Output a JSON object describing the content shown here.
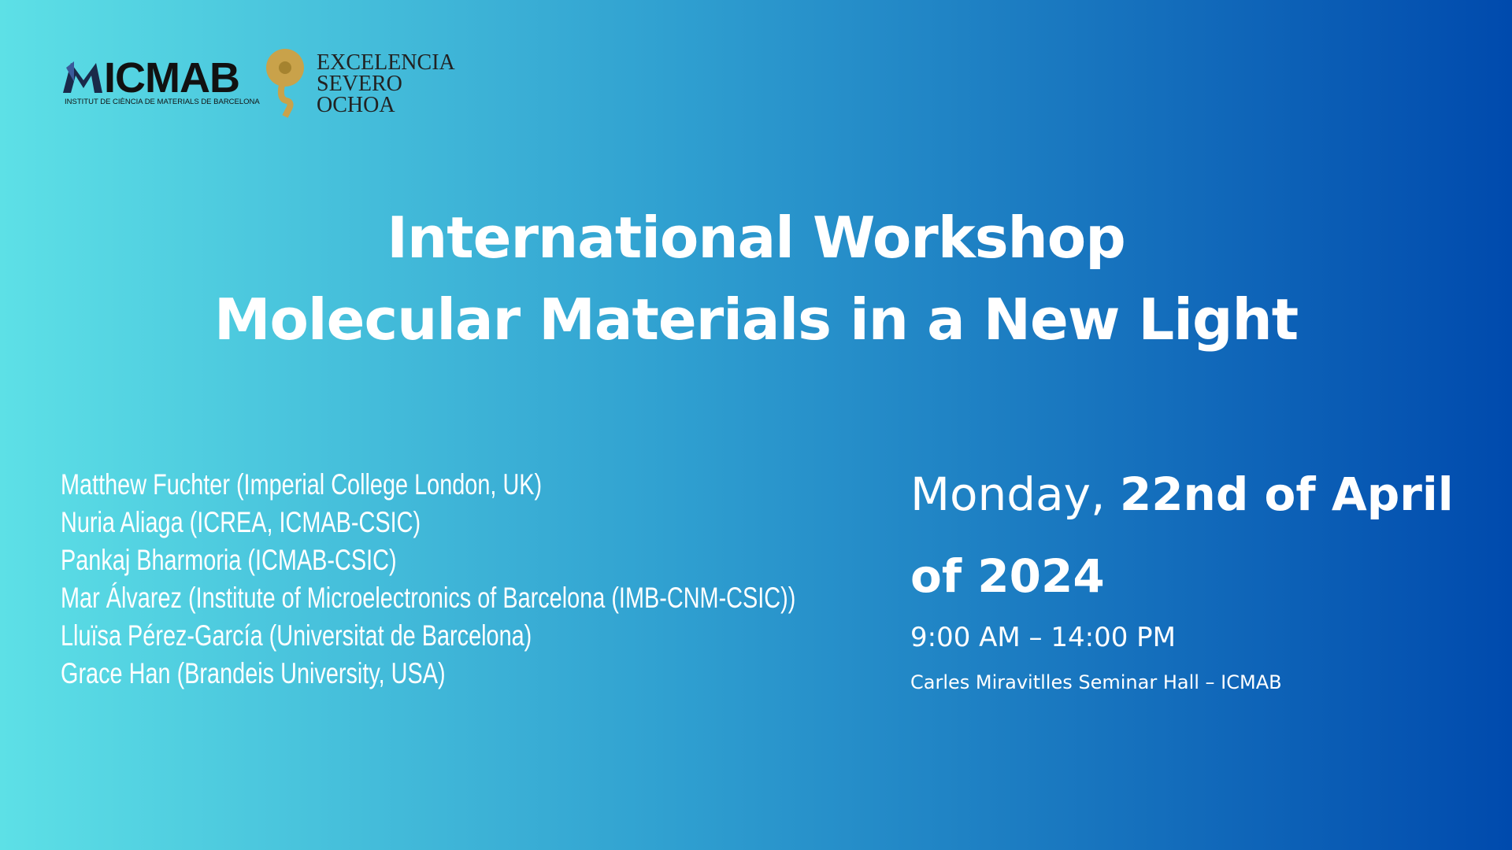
{
  "logos": {
    "icmab": "ICMAB",
    "icmab_subtitle": "INSTITUT DE CIÈNCIA DE MATERIALS DE BARCELONA",
    "excelencia": [
      "EXCELENCIA",
      "SEVERO",
      "OCHOA"
    ]
  },
  "title": [
    "International Workshop",
    "Molecular Materials in a New Light"
  ],
  "speakers": [
    "Matthew Fuchter (Imperial College London, UK)",
    "Nuria Aliaga (ICREA, ICMAB-CSIC)",
    "Pankaj Bharmoria (ICMAB-CSIC)",
    "Mar Álvarez (Institute of Microelectronics of Barcelona (IMB-CNM-CSIC))",
    "Lluïsa Pérez-García (Universitat de Barcelona)",
    "Grace Han (Brandeis University, USA)"
  ],
  "date": {
    "day": "Monday,",
    "date": "22nd of April of 2024"
  },
  "time": "9:00 AM – 14:00 PM",
  "venue": "Carles Miravitlles Seminar Hall – ICMAB"
}
